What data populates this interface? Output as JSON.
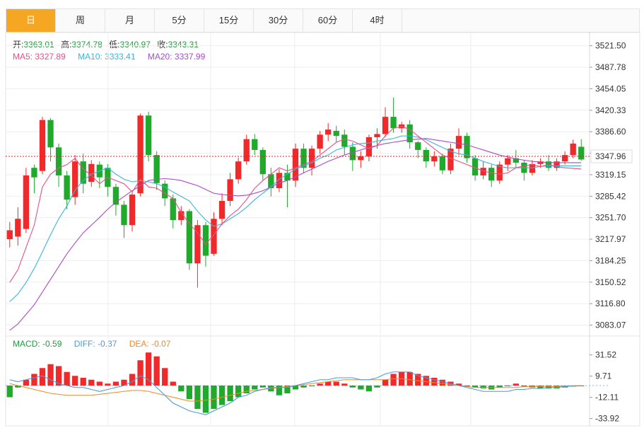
{
  "tabs": [
    {
      "label": "日",
      "active": true
    },
    {
      "label": "周",
      "active": false
    },
    {
      "label": "月",
      "active": false
    },
    {
      "label": "5分",
      "active": false
    },
    {
      "label": "15分",
      "active": false
    },
    {
      "label": "30分",
      "active": false
    },
    {
      "label": "60分",
      "active": false
    },
    {
      "label": "4时",
      "active": false
    }
  ],
  "ohlc": {
    "open_label": "开:",
    "open": "3363.01",
    "high_label": "高:",
    "high": "3374.78",
    "low_label": "低:",
    "low": "3340.97",
    "close_label": "收:",
    "close": "3343.31"
  },
  "ma": {
    "ma5_label": "MA5:",
    "ma5": "3327.89",
    "ma10_label": "MA10:",
    "ma10": "3333.41",
    "ma20_label": "MA20:",
    "ma20": "3337.99"
  },
  "macd": {
    "macd_label": "MACD:",
    "macd": "-0.59",
    "diff_label": "DIFF:",
    "diff": "-0.37",
    "dea_label": "DEA:",
    "dea": "-0.07"
  },
  "colors": {
    "up": "#f02a2a",
    "down": "#1faa2c",
    "ma5": "#e8508a",
    "ma10": "#38b7d8",
    "ma20": "#a94cc6",
    "diff": "#4a9ae0",
    "dea": "#f08a24",
    "grid": "#eeeeee",
    "last_price": "#e02020"
  },
  "chart_data": [
    {
      "type": "candlestick",
      "ylim": [
        3066,
        3540
      ],
      "yticks": [
        "3521.50",
        "3487.78",
        "3454.05",
        "3420.33",
        "3386.60",
        "3352.88",
        "3319.15",
        "3285.42",
        "3251.70",
        "3217.97",
        "3184.25",
        "3150.52",
        "3116.80",
        "3083.07"
      ],
      "last_price": "3347.96",
      "grid": true,
      "candles": [
        [
          3218,
          3232,
          3205,
          3245
        ],
        [
          3222,
          3250,
          3208,
          3268
        ],
        [
          3234,
          3318,
          3228,
          3330
        ],
        [
          3330,
          3315,
          3290,
          3335
        ],
        [
          3325,
          3405,
          3320,
          3410
        ],
        [
          3405,
          3362,
          3340,
          3408
        ],
        [
          3362,
          3318,
          3300,
          3368
        ],
        [
          3318,
          3280,
          3265,
          3325
        ],
        [
          3284,
          3340,
          3272,
          3350
        ],
        [
          3340,
          3305,
          3290,
          3352
        ],
        [
          3308,
          3336,
          3300,
          3342
        ],
        [
          3335,
          3315,
          3298,
          3340
        ],
        [
          3330,
          3300,
          3285,
          3336
        ],
        [
          3300,
          3272,
          3255,
          3305
        ],
        [
          3272,
          3240,
          3220,
          3278
        ],
        [
          3240,
          3288,
          3230,
          3292
        ],
        [
          3290,
          3412,
          3285,
          3415
        ],
        [
          3412,
          3350,
          3340,
          3418
        ],
        [
          3350,
          3306,
          3295,
          3356
        ],
        [
          3305,
          3282,
          3270,
          3310
        ],
        [
          3282,
          3248,
          3235,
          3288
        ],
        [
          3248,
          3262,
          3240,
          3270
        ],
        [
          3262,
          3180,
          3170,
          3265
        ],
        [
          3180,
          3240,
          3142,
          3248
        ],
        [
          3240,
          3192,
          3175,
          3245
        ],
        [
          3195,
          3250,
          3192,
          3260
        ],
        [
          3250,
          3278,
          3240,
          3290
        ],
        [
          3278,
          3312,
          3270,
          3322
        ],
        [
          3312,
          3340,
          3305,
          3346
        ],
        [
          3340,
          3375,
          3335,
          3382
        ],
        [
          3375,
          3358,
          3350,
          3383
        ],
        [
          3358,
          3320,
          3310,
          3362
        ],
        [
          3320,
          3298,
          3285,
          3330
        ],
        [
          3298,
          3322,
          3292,
          3328
        ],
        [
          3322,
          3310,
          3268,
          3335
        ],
        [
          3310,
          3360,
          3300,
          3368
        ],
        [
          3360,
          3330,
          3322,
          3368
        ],
        [
          3330,
          3360,
          3318,
          3365
        ],
        [
          3360,
          3382,
          3352,
          3388
        ],
        [
          3382,
          3390,
          3372,
          3400
        ],
        [
          3388,
          3380,
          3370,
          3396
        ],
        [
          3382,
          3363,
          3350,
          3390
        ],
        [
          3363,
          3342,
          3325,
          3370
        ],
        [
          3342,
          3348,
          3330,
          3356
        ],
        [
          3348,
          3378,
          3340,
          3382
        ],
        [
          3378,
          3383,
          3360,
          3392
        ],
        [
          3383,
          3410,
          3378,
          3425
        ],
        [
          3410,
          3392,
          3385,
          3440
        ],
        [
          3392,
          3398,
          3385,
          3402
        ],
        [
          3398,
          3370,
          3360,
          3405
        ],
        [
          3370,
          3358,
          3345,
          3372
        ],
        [
          3358,
          3340,
          3330,
          3362
        ],
        [
          3340,
          3348,
          3332,
          3356
        ],
        [
          3348,
          3326,
          3320,
          3352
        ],
        [
          3326,
          3360,
          3320,
          3368
        ],
        [
          3360,
          3380,
          3350,
          3392
        ],
        [
          3380,
          3345,
          3338,
          3385
        ],
        [
          3345,
          3318,
          3310,
          3350
        ],
        [
          3318,
          3330,
          3312,
          3340
        ],
        [
          3330,
          3310,
          3300,
          3335
        ],
        [
          3310,
          3335,
          3305,
          3340
        ],
        [
          3335,
          3345,
          3325,
          3350
        ],
        [
          3345,
          3338,
          3330,
          3358
        ],
        [
          3338,
          3322,
          3310,
          3342
        ],
        [
          3322,
          3336,
          3318,
          3342
        ],
        [
          3336,
          3340,
          3330,
          3345
        ],
        [
          3340,
          3330,
          3325,
          3350
        ],
        [
          3330,
          3340,
          3325,
          3345
        ],
        [
          3340,
          3350,
          3335,
          3356
        ],
        [
          3350,
          3368,
          3345,
          3374
        ],
        [
          3363,
          3343,
          3341,
          3375
        ]
      ],
      "ma5": [
        3150,
        3170,
        3205,
        3240,
        3300,
        3320,
        3330,
        3335,
        3345,
        3328,
        3318,
        3305,
        3315,
        3310,
        3305,
        3292,
        3312,
        3300,
        3298,
        3290,
        3282,
        3260,
        3242,
        3228,
        3210,
        3225,
        3242,
        3255,
        3265,
        3280,
        3298,
        3310,
        3320,
        3330,
        3325,
        3330,
        3335,
        3340,
        3350,
        3360,
        3370,
        3375,
        3372,
        3366,
        3360,
        3365,
        3380,
        3392,
        3395,
        3390,
        3380,
        3370,
        3360,
        3350,
        3345,
        3340,
        3335,
        3330,
        3325,
        3322,
        3320,
        3322,
        3330,
        3333,
        3335,
        3332,
        3335,
        3332,
        3330,
        3329,
        3328
      ],
      "ma10": [
        3120,
        3132,
        3150,
        3172,
        3198,
        3225,
        3250,
        3270,
        3295,
        3310,
        3320,
        3325,
        3330,
        3320,
        3312,
        3308,
        3310,
        3308,
        3305,
        3300,
        3292,
        3285,
        3278,
        3262,
        3248,
        3238,
        3242,
        3250,
        3258,
        3268,
        3280,
        3290,
        3300,
        3312,
        3320,
        3328,
        3333,
        3338,
        3345,
        3350,
        3358,
        3362,
        3366,
        3368,
        3369,
        3372,
        3374,
        3376,
        3380,
        3380,
        3378,
        3374,
        3368,
        3362,
        3356,
        3352,
        3350,
        3345,
        3340,
        3336,
        3332,
        3330,
        3330,
        3330,
        3330,
        3332,
        3333,
        3333,
        3333,
        3333,
        3333
      ],
      "ma20": [
        3075,
        3085,
        3100,
        3115,
        3135,
        3155,
        3175,
        3195,
        3212,
        3228,
        3240,
        3252,
        3265,
        3276,
        3285,
        3294,
        3302,
        3310,
        3312,
        3313,
        3312,
        3310,
        3306,
        3302,
        3296,
        3290,
        3288,
        3287,
        3286,
        3287,
        3290,
        3294,
        3300,
        3306,
        3310,
        3316,
        3322,
        3328,
        3334,
        3340,
        3345,
        3350,
        3354,
        3358,
        3362,
        3365,
        3368,
        3370,
        3372,
        3374,
        3375,
        3376,
        3374,
        3372,
        3370,
        3368,
        3366,
        3362,
        3358,
        3354,
        3350,
        3347,
        3344,
        3342,
        3340,
        3339,
        3338,
        3338,
        3338,
        3338,
        3338
      ]
    },
    {
      "type": "macd",
      "ylim": [
        -40,
        40
      ],
      "yticks": [
        "31.52",
        "9.71",
        "-12.11",
        "-33.92"
      ],
      "macd": [
        -12,
        -2,
        6,
        12,
        18,
        22,
        20,
        14,
        10,
        8,
        6,
        4,
        2,
        4,
        6,
        12,
        26,
        34,
        30,
        18,
        4,
        -6,
        -14,
        -24,
        -28,
        -24,
        -20,
        -16,
        -12,
        -8,
        -4,
        -2,
        -6,
        -10,
        -8,
        -4,
        -2,
        0,
        2,
        4,
        4,
        2,
        -2,
        -4,
        -6,
        -2,
        6,
        12,
        14,
        14,
        12,
        10,
        8,
        6,
        4,
        2,
        0,
        -2,
        -3,
        -4,
        -2,
        0,
        2,
        0,
        -2,
        -3,
        -3,
        -3,
        -2,
        -1,
        -0.59
      ],
      "diff": [
        6,
        4,
        6,
        8,
        10,
        6,
        2,
        0,
        -2,
        -2,
        -4,
        -6,
        -4,
        -2,
        0,
        4,
        10,
        6,
        -2,
        -10,
        -18,
        -22,
        -26,
        -28,
        -30,
        -26,
        -22,
        -18,
        -12,
        -10,
        -6,
        -4,
        -2,
        -2,
        -2,
        0,
        2,
        4,
        6,
        6,
        8,
        8,
        8,
        6,
        6,
        8,
        12,
        14,
        14,
        14,
        10,
        8,
        6,
        4,
        2,
        0,
        -2,
        -4,
        -6,
        -6,
        -6,
        -6,
        -4,
        -4,
        -3,
        -3,
        -2,
        -2,
        -1,
        -0.5,
        -0.37
      ],
      "dea": [
        2,
        0,
        -2,
        -4,
        -6,
        -8,
        -9,
        -10,
        -10,
        -10,
        -10,
        -9,
        -8,
        -7,
        -6,
        -5,
        -5,
        -6,
        -8,
        -10,
        -12,
        -14,
        -16,
        -16,
        -15,
        -14,
        -12,
        -10,
        -8,
        -6,
        -5,
        -4,
        -3,
        -2,
        -1,
        0,
        1,
        2,
        3,
        4,
        5,
        6,
        6,
        6,
        6,
        6,
        6,
        7,
        7,
        6,
        5,
        4,
        3,
        2,
        1,
        0,
        -1,
        -2,
        -2,
        -2,
        -2,
        -2,
        -2,
        -1,
        -1,
        -1,
        -1,
        -1,
        -0.5,
        -0.2,
        -0.07
      ]
    }
  ]
}
